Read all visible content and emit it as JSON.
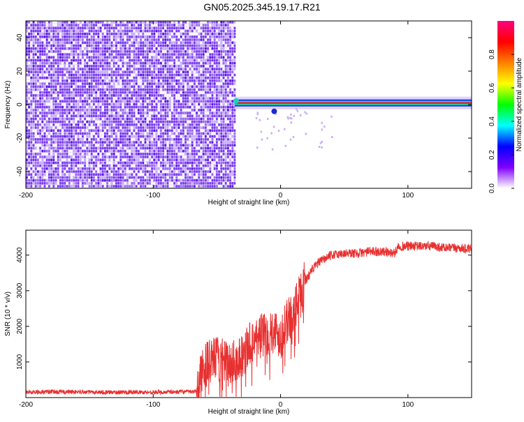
{
  "title": "GN05.2025.345.19.17.R21",
  "colors": {
    "snr_line": "#e83030",
    "noise_dots": "#7a3cf0",
    "trace_core": "#e8144c"
  },
  "chart_data": [
    {
      "type": "heatmap",
      "xlabel": "Height of straight line (km)",
      "ylabel": "Frequency (Hz)",
      "xlim": [
        -200,
        150
      ],
      "ylim": [
        -50,
        50
      ],
      "x_ticks": [
        -200,
        -100,
        0,
        100
      ],
      "y_ticks": [
        -40,
        -20,
        0,
        20,
        40
      ],
      "noise_region_x": [
        -200,
        -36
      ],
      "signal": {
        "x_start": -36,
        "x_end": 150,
        "frequency": 1
      },
      "colorbar": {
        "label": "Normalized spectral amplitude",
        "range": [
          0,
          1
        ],
        "ticks": [
          0.0,
          0.2,
          0.4,
          0.6,
          0.8
        ],
        "colormap": [
          "#ffffff",
          "#8000ff",
          "#0000ff",
          "#00ffff",
          "#00ff00",
          "#ffff00",
          "#ff8000",
          "#ff0000",
          "#ff0080"
        ]
      }
    },
    {
      "type": "line",
      "xlabel": "Height of straight line (km)",
      "ylabel": "SNR (10 * v/v)",
      "xlim": [
        -200,
        150
      ],
      "ylim": [
        0,
        4700
      ],
      "x_ticks": [
        -200,
        -100,
        0,
        100
      ],
      "y_ticks": [
        1000,
        2000,
        3000,
        4000
      ],
      "series": [
        {
          "x": [
            -200,
            -180,
            -160,
            -140,
            -120,
            -100,
            -80,
            -66,
            -60,
            -50,
            -40,
            -30,
            -20,
            -10,
            -5,
            0,
            5,
            10,
            15,
            20,
            25,
            30,
            40,
            50,
            60,
            70,
            80,
            90,
            92,
            100,
            110,
            120,
            130,
            140,
            150
          ],
          "values": [
            150,
            160,
            160,
            150,
            150,
            150,
            160,
            170,
            900,
            1100,
            900,
            1200,
            1700,
            1800,
            1900,
            1700,
            2100,
            2400,
            2800,
            3300,
            3600,
            3800,
            4000,
            4050,
            4050,
            4100,
            4100,
            4050,
            4250,
            4250,
            4250,
            4250,
            4200,
            4200,
            4150
          ]
        }
      ]
    }
  ]
}
